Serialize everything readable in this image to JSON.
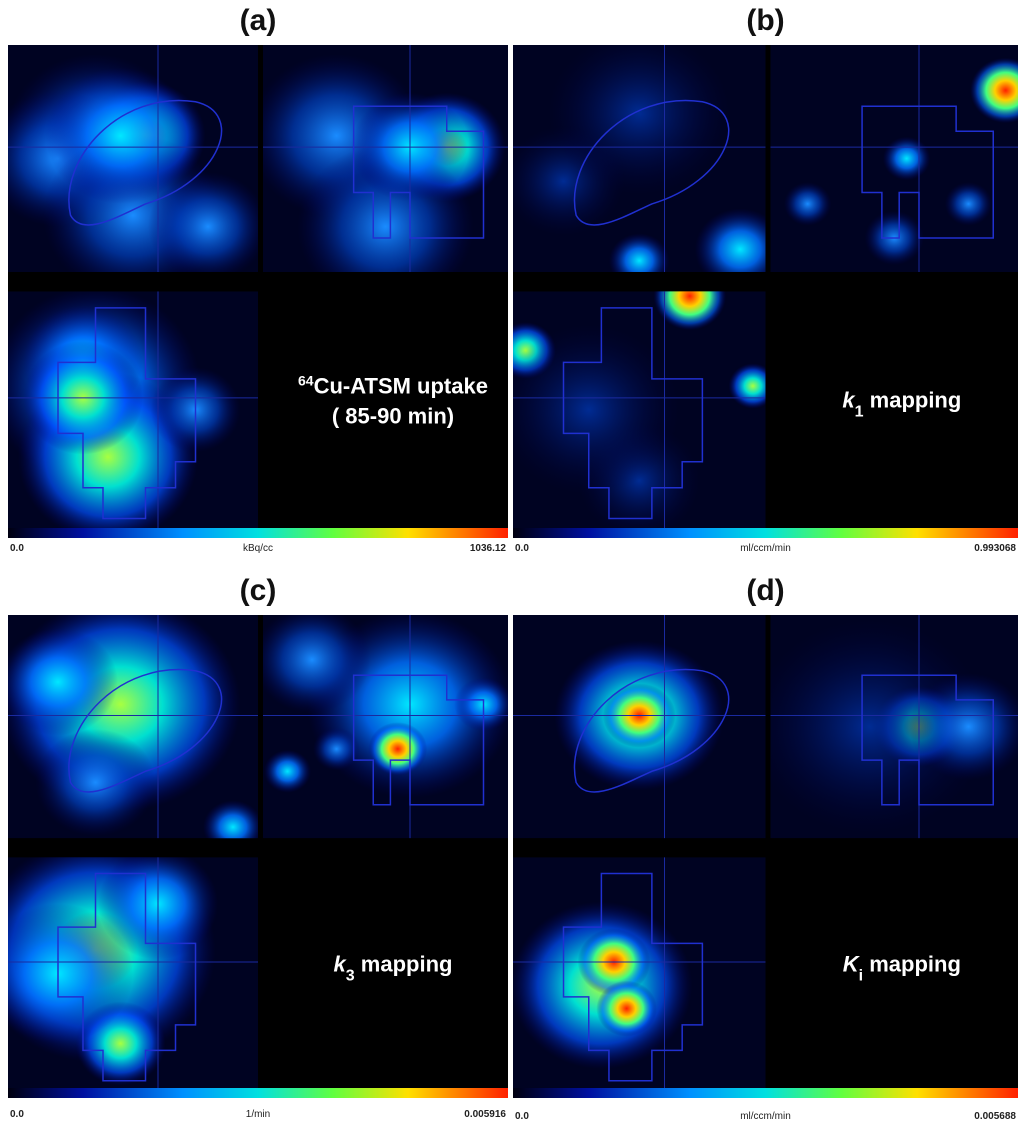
{
  "panels": [
    {
      "label": "(a)",
      "caption": [
        [
          {
            "text": "64",
            "style": "sup"
          },
          {
            "text": "Cu-ATSM uptake",
            "style": "normal"
          }
        ],
        [
          {
            "text": "( 85-90 min)",
            "style": "normal"
          }
        ]
      ],
      "colorbar": {
        "min": "0.0",
        "unit": "kBq/cc",
        "max": "1036.12"
      }
    },
    {
      "label": "(b)",
      "caption": [
        [
          {
            "text": "k",
            "style": "italic"
          },
          {
            "text": "1",
            "style": "sub"
          },
          {
            "text": " mapping",
            "style": "normal"
          }
        ]
      ],
      "colorbar": {
        "min": "0.0",
        "unit": "ml/ccm/min",
        "max": "0.993068"
      }
    },
    {
      "label": "(c)",
      "caption": [
        [
          {
            "text": "k",
            "style": "italic"
          },
          {
            "text": "3",
            "style": "sub"
          },
          {
            "text": " mapping",
            "style": "normal"
          }
        ]
      ],
      "colorbar": {
        "min": "0.0",
        "unit": "1/min",
        "max": "0.005916"
      }
    },
    {
      "label": "(d)",
      "caption": [
        [
          {
            "text": "K",
            "style": "italic"
          },
          {
            "text": "i",
            "style": "sub"
          },
          {
            "text": " mapping",
            "style": "normal"
          }
        ]
      ],
      "colorbar": {
        "min": "0.0",
        "unit": "ml/ccm/min",
        "max": "0.005688"
      }
    }
  ]
}
